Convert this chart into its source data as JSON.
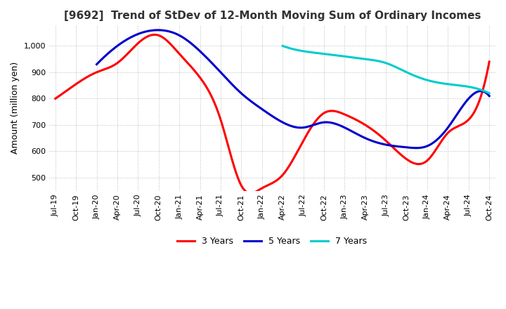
{
  "title": "[9692]  Trend of StDev of 12-Month Moving Sum of Ordinary Incomes",
  "ylabel": "Amount (million yen)",
  "ylim": [
    450,
    1080
  ],
  "yticks": [
    500,
    600,
    700,
    800,
    900,
    1000
  ],
  "line_colors": {
    "3 Years": "#ff0000",
    "5 Years": "#0000cc",
    "7 Years": "#00cccc",
    "10 Years": "#006600"
  },
  "x_labels": [
    "Jul-19",
    "Oct-19",
    "Jan-20",
    "Apr-20",
    "Jul-20",
    "Oct-20",
    "Jan-21",
    "Apr-21",
    "Jul-21",
    "Oct-21",
    "Jan-22",
    "Apr-22",
    "Jul-22",
    "Oct-22",
    "Jan-23",
    "Apr-23",
    "Jul-23",
    "Oct-23",
    "Jan-24",
    "Apr-24",
    "Jul-24",
    "Oct-24"
  ],
  "series": {
    "3 Years": [
      800,
      855,
      900,
      935,
      1010,
      1040,
      970,
      880,
      720,
      470,
      460,
      510,
      640,
      745,
      740,
      700,
      640,
      570,
      565,
      670,
      720,
      940
    ],
    "5 Years": [
      null,
      null,
      930,
      1000,
      1045,
      1060,
      1040,
      980,
      900,
      820,
      760,
      710,
      690,
      710,
      690,
      650,
      625,
      615,
      620,
      690,
      800,
      810
    ],
    "7 Years": [
      null,
      null,
      null,
      null,
      null,
      null,
      null,
      null,
      null,
      null,
      null,
      1000,
      980,
      970,
      960,
      950,
      935,
      900,
      870,
      855,
      845,
      820
    ],
    "10 Years": [
      null,
      null,
      null,
      null,
      null,
      null,
      null,
      null,
      null,
      null,
      null,
      null,
      null,
      null,
      null,
      null,
      null,
      null,
      null,
      null,
      null,
      null
    ]
  },
  "background_color": "#ffffff",
  "grid_color": "#bbbbbb",
  "title_fontsize": 11,
  "tick_fontsize": 8,
  "label_fontsize": 9,
  "legend_fontsize": 9,
  "linewidth": 2.2
}
